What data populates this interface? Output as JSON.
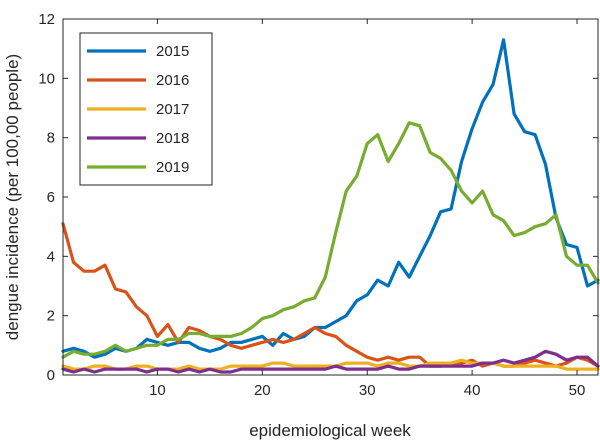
{
  "chart_data": {
    "type": "line",
    "title": "",
    "xlabel": "epidemiological week",
    "ylabel": "dengue incidence (per 100,00 people)",
    "xlim": [
      1,
      52
    ],
    "ylim": [
      0,
      12
    ],
    "xticks": [
      10,
      20,
      30,
      40,
      50
    ],
    "yticks": [
      0,
      2,
      4,
      6,
      8,
      10,
      12
    ],
    "grid": false,
    "legend_position": "top-left",
    "x": [
      1,
      2,
      3,
      4,
      5,
      6,
      7,
      8,
      9,
      10,
      11,
      12,
      13,
      14,
      15,
      16,
      17,
      18,
      19,
      20,
      21,
      22,
      23,
      24,
      25,
      26,
      27,
      28,
      29,
      30,
      31,
      32,
      33,
      34,
      35,
      36,
      37,
      38,
      39,
      40,
      41,
      42,
      43,
      44,
      45,
      46,
      47,
      48,
      49,
      50,
      51,
      52
    ],
    "series": [
      {
        "name": "2015",
        "color": "#0072BD",
        "values": [
          0.8,
          0.9,
          0.8,
          0.6,
          0.7,
          0.9,
          0.8,
          0.9,
          1.2,
          1.1,
          1.0,
          1.1,
          1.1,
          0.9,
          0.8,
          0.9,
          1.1,
          1.1,
          1.2,
          1.3,
          1.0,
          1.4,
          1.2,
          1.3,
          1.6,
          1.6,
          1.8,
          2.0,
          2.5,
          2.7,
          3.2,
          3.0,
          3.8,
          3.3,
          4.0,
          4.7,
          5.5,
          5.6,
          7.2,
          8.3,
          9.2,
          9.8,
          11.3,
          8.8,
          8.2,
          8.1,
          7.1,
          5.3,
          4.4,
          4.3,
          3.0,
          3.2
        ]
      },
      {
        "name": "2016",
        "color": "#D95319",
        "values": [
          5.1,
          3.8,
          3.5,
          3.5,
          3.7,
          2.9,
          2.8,
          2.3,
          2.0,
          1.3,
          1.7,
          1.1,
          1.6,
          1.5,
          1.3,
          1.2,
          1.0,
          0.9,
          1.0,
          1.1,
          1.2,
          1.1,
          1.2,
          1.4,
          1.6,
          1.4,
          1.3,
          1.0,
          0.8,
          0.6,
          0.5,
          0.6,
          0.5,
          0.6,
          0.6,
          0.3,
          0.3,
          0.4,
          0.4,
          0.5,
          0.3,
          0.4,
          0.3,
          0.3,
          0.4,
          0.5,
          0.4,
          0.3,
          0.4,
          0.6,
          0.5,
          0.3
        ]
      },
      {
        "name": "2017",
        "color": "#EDB120",
        "values": [
          0.3,
          0.2,
          0.2,
          0.3,
          0.3,
          0.2,
          0.2,
          0.3,
          0.3,
          0.2,
          0.2,
          0.2,
          0.3,
          0.2,
          0.2,
          0.2,
          0.3,
          0.3,
          0.3,
          0.3,
          0.4,
          0.4,
          0.3,
          0.3,
          0.3,
          0.3,
          0.3,
          0.4,
          0.4,
          0.4,
          0.3,
          0.4,
          0.4,
          0.3,
          0.3,
          0.4,
          0.4,
          0.4,
          0.5,
          0.4,
          0.4,
          0.4,
          0.3,
          0.3,
          0.3,
          0.3,
          0.3,
          0.3,
          0.2,
          0.2,
          0.2,
          0.2
        ]
      },
      {
        "name": "2018",
        "color": "#7E2F8E",
        "values": [
          0.2,
          0.1,
          0.2,
          0.1,
          0.2,
          0.2,
          0.2,
          0.2,
          0.1,
          0.2,
          0.2,
          0.1,
          0.2,
          0.1,
          0.2,
          0.1,
          0.1,
          0.2,
          0.2,
          0.2,
          0.2,
          0.2,
          0.2,
          0.2,
          0.2,
          0.2,
          0.3,
          0.2,
          0.2,
          0.2,
          0.2,
          0.3,
          0.2,
          0.2,
          0.3,
          0.3,
          0.3,
          0.3,
          0.3,
          0.3,
          0.4,
          0.4,
          0.5,
          0.4,
          0.5,
          0.6,
          0.8,
          0.7,
          0.5,
          0.6,
          0.6,
          0.3
        ]
      },
      {
        "name": "2019",
        "color": "#77AC30",
        "values": [
          0.6,
          0.8,
          0.7,
          0.7,
          0.8,
          1.0,
          0.8,
          0.9,
          1.0,
          1.0,
          1.2,
          1.2,
          1.4,
          1.4,
          1.3,
          1.3,
          1.3,
          1.4,
          1.6,
          1.9,
          2.0,
          2.2,
          2.3,
          2.5,
          2.6,
          3.3,
          4.8,
          6.2,
          6.7,
          7.8,
          8.1,
          7.2,
          7.8,
          8.5,
          8.4,
          7.5,
          7.3,
          6.9,
          6.2,
          5.8,
          6.2,
          5.4,
          5.2,
          4.7,
          4.8,
          5.0,
          5.1,
          5.4,
          4.0,
          3.7,
          3.7,
          3.1
        ]
      }
    ]
  }
}
